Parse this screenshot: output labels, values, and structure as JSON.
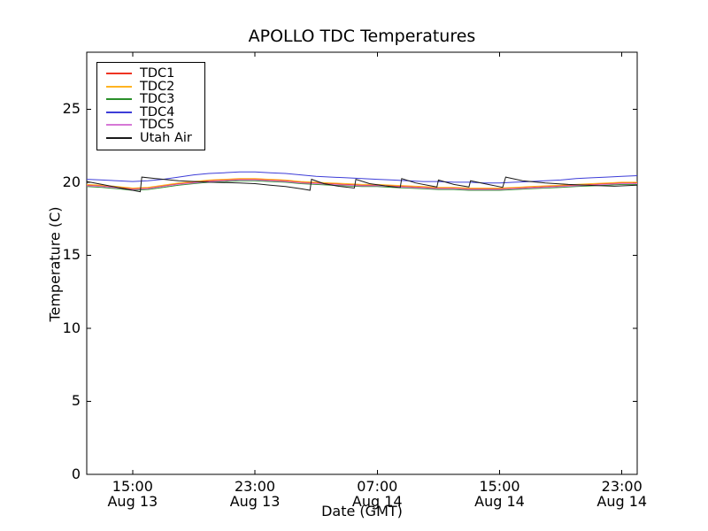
{
  "figure": {
    "title": "APOLLO TDC Temperatures",
    "xlabel": "Date (GMT)",
    "ylabel": "Temperature (C)",
    "background_color": "#ffffff",
    "axis_color": "#000000"
  },
  "chart_data": {
    "type": "line",
    "title": "APOLLO TDC Temperatures",
    "xlabel": "Date (GMT)",
    "ylabel": "Temperature (C)",
    "grid": false,
    "legend_position": "upper-left",
    "x_units": "hours since Aug 13 12:00 GMT",
    "xlim_hours": [
      0,
      36
    ],
    "ylim": [
      0,
      28.9
    ],
    "yticks": [
      0,
      5,
      10,
      15,
      20,
      25
    ],
    "xticks": [
      {
        "hour": 3,
        "time": "15:00",
        "date": "Aug 13"
      },
      {
        "hour": 11,
        "time": "23:00",
        "date": "Aug 13"
      },
      {
        "hour": 19,
        "time": "07:00",
        "date": "Aug 14"
      },
      {
        "hour": 27,
        "time": "15:00",
        "date": "Aug 14"
      },
      {
        "hour": 35,
        "time": "23:00",
        "date": "Aug 14"
      }
    ],
    "x_hours": [
      0,
      1,
      2,
      3,
      4,
      5,
      6,
      7,
      8,
      9,
      10,
      11,
      12,
      13,
      14,
      15,
      16,
      17,
      18,
      19,
      20,
      21,
      22,
      23,
      24,
      25,
      26,
      27,
      28,
      29,
      30,
      31,
      32,
      33,
      34,
      35,
      36
    ],
    "series": [
      {
        "name": "TDC1",
        "color": "#ee3322",
        "values": [
          19.8,
          19.75,
          19.65,
          19.55,
          19.6,
          19.75,
          19.9,
          20.0,
          20.1,
          20.15,
          20.2,
          20.2,
          20.15,
          20.1,
          20.0,
          19.95,
          19.9,
          19.85,
          19.8,
          19.8,
          19.75,
          19.7,
          19.65,
          19.6,
          19.6,
          19.55,
          19.55,
          19.55,
          19.6,
          19.65,
          19.7,
          19.75,
          19.8,
          19.85,
          19.9,
          19.95,
          19.95
        ]
      },
      {
        "name": "TDC2",
        "color": "#ffb321",
        "values": [
          19.85,
          19.8,
          19.7,
          19.6,
          19.65,
          19.8,
          19.95,
          20.05,
          20.15,
          20.2,
          20.25,
          20.25,
          20.2,
          20.15,
          20.05,
          20.0,
          19.95,
          19.9,
          19.85,
          19.85,
          19.8,
          19.75,
          19.7,
          19.65,
          19.65,
          19.6,
          19.6,
          19.6,
          19.65,
          19.7,
          19.75,
          19.8,
          19.85,
          19.9,
          19.95,
          20.0,
          20.0
        ]
      },
      {
        "name": "TDC3",
        "color": "#2a8f2a",
        "values": [
          19.7,
          19.65,
          19.55,
          19.45,
          19.5,
          19.65,
          19.8,
          19.9,
          20.0,
          20.05,
          20.1,
          20.1,
          20.05,
          20.0,
          19.9,
          19.85,
          19.8,
          19.75,
          19.7,
          19.7,
          19.65,
          19.6,
          19.55,
          19.5,
          19.5,
          19.45,
          19.45,
          19.45,
          19.5,
          19.55,
          19.6,
          19.65,
          19.7,
          19.75,
          19.8,
          19.85,
          19.85
        ]
      },
      {
        "name": "TDC4",
        "color": "#3d3dd8",
        "values": [
          20.2,
          20.15,
          20.1,
          20.05,
          20.1,
          20.2,
          20.35,
          20.5,
          20.6,
          20.65,
          20.7,
          20.7,
          20.65,
          20.6,
          20.5,
          20.4,
          20.35,
          20.3,
          20.25,
          20.2,
          20.15,
          20.1,
          20.05,
          20.05,
          20.0,
          20.0,
          19.95,
          19.95,
          20.0,
          20.05,
          20.1,
          20.15,
          20.25,
          20.3,
          20.35,
          20.4,
          20.45
        ]
      },
      {
        "name": "TDC5",
        "color": "#d678d6",
        "values": [
          19.75,
          19.7,
          19.6,
          19.5,
          19.55,
          19.7,
          19.85,
          19.95,
          20.05,
          20.1,
          20.15,
          20.15,
          20.1,
          20.05,
          19.95,
          19.9,
          19.85,
          19.8,
          19.75,
          19.75,
          19.7,
          19.65,
          19.6,
          19.55,
          19.55,
          19.5,
          19.5,
          19.5,
          19.55,
          19.6,
          19.65,
          19.7,
          19.75,
          19.8,
          19.85,
          19.9,
          19.9
        ]
      },
      {
        "name": "Utah Air",
        "color": "#1a1a1a",
        "points": [
          [
            0,
            20.05
          ],
          [
            1,
            19.85
          ],
          [
            2,
            19.65
          ],
          [
            3,
            19.45
          ],
          [
            3.5,
            19.35
          ],
          [
            3.6,
            20.35
          ],
          [
            4.5,
            20.25
          ],
          [
            6,
            20.1
          ],
          [
            8,
            20.0
          ],
          [
            10,
            19.95
          ],
          [
            11,
            19.9
          ],
          [
            12,
            19.8
          ],
          [
            13,
            19.7
          ],
          [
            14,
            19.55
          ],
          [
            14.6,
            19.45
          ],
          [
            14.7,
            20.2
          ],
          [
            15.5,
            19.9
          ],
          [
            16.5,
            19.72
          ],
          [
            17.5,
            19.6
          ],
          [
            17.6,
            20.2
          ],
          [
            18.5,
            19.9
          ],
          [
            19.5,
            19.75
          ],
          [
            20.5,
            19.63
          ],
          [
            20.6,
            20.25
          ],
          [
            21.5,
            19.95
          ],
          [
            22.5,
            19.75
          ],
          [
            22.9,
            19.67
          ],
          [
            23.0,
            20.15
          ],
          [
            24,
            19.85
          ],
          [
            25.0,
            19.67
          ],
          [
            25.1,
            20.1
          ],
          [
            26,
            19.9
          ],
          [
            27.2,
            19.65
          ],
          [
            27.4,
            20.35
          ],
          [
            28.5,
            20.1
          ],
          [
            30,
            19.95
          ],
          [
            31.5,
            19.85
          ],
          [
            33,
            19.78
          ],
          [
            34.5,
            19.73
          ],
          [
            36,
            19.8
          ]
        ]
      }
    ]
  }
}
